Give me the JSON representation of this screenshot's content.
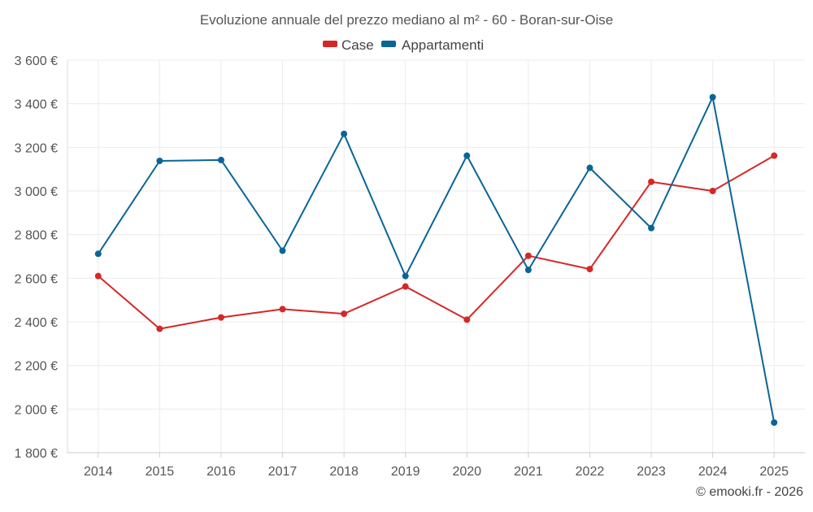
{
  "chart_data": {
    "type": "line",
    "title": "Evoluzione annuale del prezzo mediano al m² - 60 - Boran-sur-Oise",
    "xlabel": "",
    "ylabel": "",
    "categories": [
      "2014",
      "2015",
      "2016",
      "2017",
      "2018",
      "2019",
      "2020",
      "2021",
      "2022",
      "2023",
      "2024",
      "2025"
    ],
    "ylim": [
      1800,
      3600
    ],
    "yticks": [
      1800,
      2000,
      2200,
      2400,
      2600,
      2800,
      3000,
      3200,
      3400,
      3600
    ],
    "ytick_labels": [
      "1 800 €",
      "2 000 €",
      "2 200 €",
      "2 400 €",
      "2 600 €",
      "2 800 €",
      "3 000 €",
      "3 200 €",
      "3 400 €",
      "3 600 €"
    ],
    "grid": true,
    "legend_position": "top-center",
    "series": [
      {
        "name": "Case",
        "color": "#d62728",
        "values": [
          2610,
          2368,
          2420,
          2458,
          2437,
          2562,
          2410,
          2703,
          2642,
          3042,
          3000,
          3162
        ]
      },
      {
        "name": "Appartamenti",
        "color": "#0a6596",
        "values": [
          2712,
          3138,
          3142,
          2726,
          3262,
          2610,
          3162,
          2638,
          3106,
          2830,
          3430,
          1938
        ]
      }
    ],
    "credit": "© emooki.fr - 2026"
  }
}
